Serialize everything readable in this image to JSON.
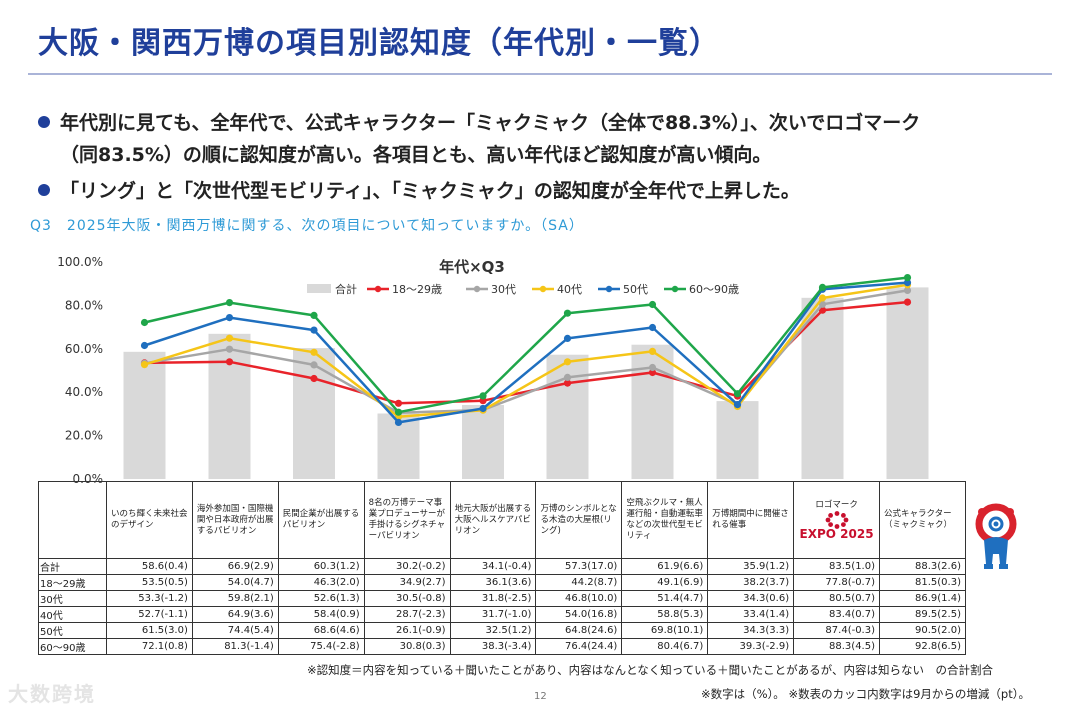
{
  "title": "大阪・関西万博の項目別認知度（年代別・一覧）",
  "bullets": [
    {
      "line1": "年代別に見ても、全年代で、公式キャラクター「ミャクミャク（全体で88.3%）」、次いでロゴマーク",
      "line2": "（同83.5%）の順に認知度が高い。各項目とも、高い年代ほど認知度が高い傾向。"
    },
    {
      "line1": "「リング」と「次世代型モビリティ」、「ミャクミャク」の認知度が全年代で上昇した。"
    }
  ],
  "question": "Q3　2025年大阪・関西万博に関する、次の項目について知っていますか。（SA）",
  "colors": {
    "title": "#1f3f9a",
    "bar": "#d9d9d9",
    "question": "#2e9ad6"
  },
  "chart_data": {
    "type": "bar+line",
    "title": "年代×Q3",
    "ylim": [
      0,
      100
    ],
    "yticks": [
      "0.0%",
      "20.0%",
      "40.0%",
      "60.0%",
      "80.0%",
      "100.0%"
    ],
    "categories": [
      "いのち輝く未来社会のデザイン",
      "海外参加国・国際機関や日本政府が出展するパビリオン",
      "民間企業が出展するパビリオン",
      "8名の万博テーマ事業プロデューサーが手掛けるシグネチャーパビリオン",
      "地元大阪が出展する大阪ヘルスケアパビリオン",
      "万博のシンボルとなる木造の大屋根(リング)",
      "空飛ぶクルマ・無人運行船・自動運転車などの次世代型モビリティ",
      "万博期間中に開催される催事",
      "ロゴマーク",
      "公式キャラクター（ミャクミャク）"
    ],
    "bar_series": {
      "name": "合計",
      "color": "#d9d9d9",
      "values": [
        58.6,
        66.9,
        60.3,
        30.2,
        34.1,
        57.3,
        61.9,
        35.9,
        83.5,
        88.3
      ]
    },
    "line_series": [
      {
        "name": "18～29歳",
        "color": "#e8232a",
        "values": [
          53.5,
          54.0,
          46.3,
          34.9,
          36.1,
          44.2,
          49.1,
          38.2,
          77.8,
          81.5
        ]
      },
      {
        "name": "30代",
        "color": "#a6a6a6",
        "values": [
          53.3,
          59.8,
          52.6,
          30.5,
          31.8,
          46.8,
          51.4,
          34.3,
          80.5,
          86.9
        ]
      },
      {
        "name": "40代",
        "color": "#f5c518",
        "values": [
          52.7,
          64.9,
          58.4,
          28.7,
          31.7,
          54.0,
          58.8,
          33.4,
          83.4,
          89.5
        ]
      },
      {
        "name": "50代",
        "color": "#1f6fbf",
        "values": [
          61.5,
          74.4,
          68.6,
          26.1,
          32.5,
          64.8,
          69.8,
          34.3,
          87.4,
          90.5
        ]
      },
      {
        "name": "60～90歳",
        "color": "#1fa64a",
        "values": [
          72.1,
          81.3,
          75.4,
          30.8,
          38.3,
          76.4,
          80.4,
          39.3,
          88.3,
          92.8
        ]
      }
    ]
  },
  "table": {
    "headers": [
      "いのち輝く未来社会のデザイン",
      "海外参加国・国際機関や日本政府が出展するパビリオン",
      "民間企業が出展するパビリオン",
      "8名の万博テーマ事業プロデューサーが手掛けるシグネチャーパビリオン",
      "地元大阪が出展する大阪ヘルスケアパビリオン",
      "万博のシンボルとなる木造の大屋根(リング)",
      "空飛ぶクルマ・無人運行船・自動運転車などの次世代型モビリティ",
      "万博期間中に開催される催事",
      "ロゴマーク",
      "公式キャラクター（ミャクミャク）"
    ],
    "logo_text": "EXPO 2025",
    "rows": [
      {
        "label": "合計",
        "cells": [
          "58.6(0.4)",
          "66.9(2.9)",
          "60.3(1.2)",
          "30.2(-0.2)",
          "34.1(-0.4)",
          "57.3(17.0)",
          "61.9(6.6)",
          "35.9(1.2)",
          "83.5(1.0)",
          "88.3(2.6)"
        ]
      },
      {
        "label": "18～29歳",
        "cells": [
          "53.5(0.5)",
          "54.0(4.7)",
          "46.3(2.0)",
          "34.9(2.7)",
          "36.1(3.6)",
          "44.2(8.7)",
          "49.1(6.9)",
          "38.2(3.7)",
          "77.8(-0.7)",
          "81.5(0.3)"
        ]
      },
      {
        "label": "30代",
        "cells": [
          "53.3(-1.2)",
          "59.8(2.1)",
          "52.6(1.3)",
          "30.5(-0.8)",
          "31.8(-2.5)",
          "46.8(10.0)",
          "51.4(4.7)",
          "34.3(0.6)",
          "80.5(0.7)",
          "86.9(1.4)"
        ]
      },
      {
        "label": "40代",
        "cells": [
          "52.7(-1.1)",
          "64.9(3.6)",
          "58.4(0.9)",
          "28.7(-2.3)",
          "31.7(-1.0)",
          "54.0(16.8)",
          "58.8(5.3)",
          "33.4(1.4)",
          "83.4(0.7)",
          "89.5(2.5)"
        ]
      },
      {
        "label": "50代",
        "cells": [
          "61.5(3.0)",
          "74.4(5.4)",
          "68.6(4.6)",
          "26.1(-0.9)",
          "32.5(1.2)",
          "64.8(24.6)",
          "69.8(10.1)",
          "34.3(3.3)",
          "87.4(-0.3)",
          "90.5(2.0)"
        ]
      },
      {
        "label": "60～90歳",
        "cells": [
          "72.1(0.8)",
          "81.3(-1.4)",
          "75.4(-2.8)",
          "30.8(0.3)",
          "38.3(-3.4)",
          "76.4(24.4)",
          "80.4(6.7)",
          "39.3(-2.9)",
          "88.3(4.5)",
          "92.8(6.5)"
        ]
      }
    ]
  },
  "footnotes": [
    "※認知度＝内容を知っている＋聞いたことがあり、内容はなんとなく知っている＋聞いたことがあるが、内容は知らない　の合計割合",
    "※数字は（%）。 ※数表のカッコ内数字は9月からの増減（pt）。"
  ],
  "page_number": "12",
  "watermark": "大数跨境"
}
